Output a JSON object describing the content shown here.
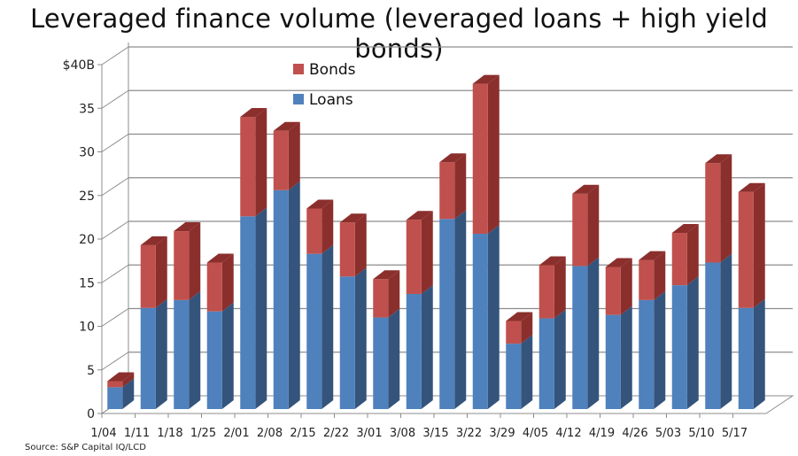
{
  "title": "Leveraged finance volume (leveraged loans + high yield bonds)",
  "source": "Source: S&P Capital IQ/LCD",
  "colors": {
    "bonds_front": "#c0504d",
    "bonds_side": "#8b2f2d",
    "loans_front": "#4f81bd",
    "loans_side": "#34547c",
    "grid": "#8c8c8c"
  },
  "legend": [
    {
      "label": "Bonds",
      "color": "#c0504d"
    },
    {
      "label": "Loans",
      "color": "#4f81bd"
    }
  ],
  "chart_data": {
    "type": "bar",
    "stacked": true,
    "style": "3d-stacked-column",
    "title": "Leveraged finance volume (leveraged loans + high yield bonds)",
    "xlabel": "",
    "ylabel": "",
    "ylim": [
      0,
      40
    ],
    "yticks": [
      "0",
      "5",
      "10",
      "15",
      "20",
      "25",
      "30",
      "35",
      "$40B"
    ],
    "grid": true,
    "legend_position": "top-center-inside",
    "categories": [
      "1/04",
      "1/11",
      "1/18",
      "1/25",
      "2/01",
      "2/08",
      "2/15",
      "2/22",
      "3/01",
      "3/08",
      "3/15",
      "3/22",
      "3/29",
      "4/05",
      "4/12",
      "4/19",
      "4/26",
      "5/03",
      "5/10",
      "5/17"
    ],
    "series": [
      {
        "name": "Loans",
        "values": [
          2.5,
          11.6,
          12.5,
          11.2,
          22.1,
          25.1,
          17.8,
          15.2,
          10.5,
          13.2,
          21.8,
          20.1,
          7.5,
          10.4,
          16.4,
          10.8,
          12.5,
          14.2,
          16.8,
          11.6
        ]
      },
      {
        "name": "Bonds",
        "values": [
          0.7,
          7.2,
          7.9,
          5.6,
          11.4,
          6.8,
          5.2,
          6.2,
          4.4,
          8.5,
          6.5,
          17.2,
          2.6,
          6.1,
          8.3,
          5.5,
          4.6,
          6.0,
          11.4,
          13.3
        ]
      }
    ],
    "source": "Source: S&P Capital IQ/LCD"
  }
}
